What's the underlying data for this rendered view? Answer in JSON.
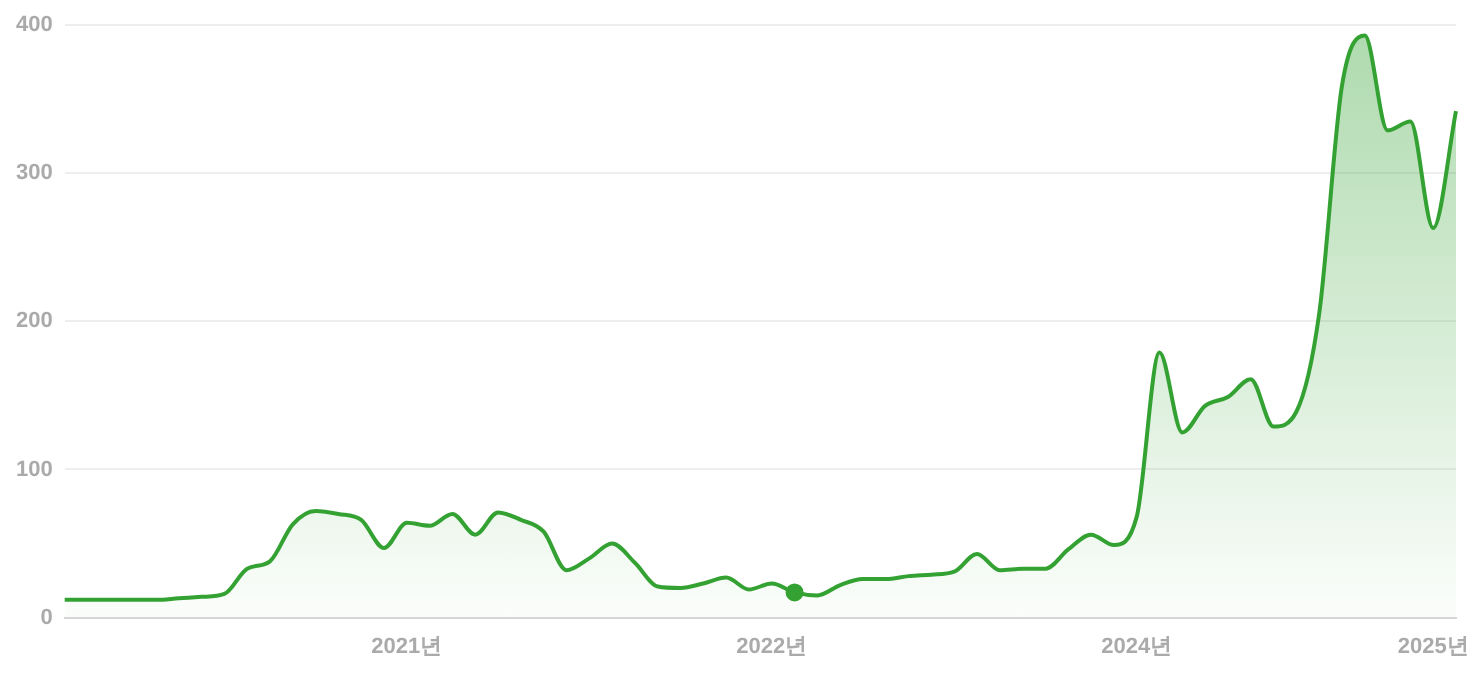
{
  "chart_data": {
    "type": "area",
    "categories": [
      null,
      null,
      null,
      null,
      null,
      null,
      null,
      null,
      null,
      null,
      null,
      null,
      null,
      null,
      null,
      "2021년",
      null,
      null,
      null,
      null,
      null,
      null,
      null,
      null,
      null,
      null,
      null,
      null,
      null,
      null,
      null,
      "2022년",
      null,
      null,
      null,
      null,
      null,
      null,
      null,
      null,
      null,
      null,
      null,
      null,
      null,
      null,
      null,
      "2024년",
      null,
      null,
      null,
      null,
      null,
      null,
      null,
      null,
      null,
      null,
      null,
      null,
      "2025년",
      null
    ],
    "series": [
      {
        "color": "#34a233",
        "values": [
          12,
          12,
          12,
          12,
          12,
          13,
          14,
          16,
          33,
          38,
          63,
          72,
          70,
          66,
          47,
          64,
          62,
          70,
          56,
          71,
          66,
          58,
          32,
          40,
          50,
          37,
          21,
          20,
          23,
          27,
          19,
          23,
          17,
          15,
          22,
          26,
          26,
          28,
          29,
          31,
          43,
          32,
          33,
          33,
          46,
          56,
          49,
          68,
          179,
          125,
          143,
          149,
          161,
          129,
          139,
          205,
          359,
          393,
          329,
          335,
          263,
          342
        ]
      },
      {
        "type": "scatter",
        "marker": "circle",
        "color": "#34a233",
        "values": [
          null,
          null,
          null,
          null,
          null,
          null,
          null,
          null,
          null,
          null,
          null,
          null,
          null,
          null,
          null,
          null,
          null,
          null,
          null,
          null,
          null,
          null,
          null,
          null,
          null,
          null,
          null,
          null,
          null,
          null,
          null,
          null,
          17,
          null,
          null,
          null,
          null,
          null,
          null,
          null,
          null,
          null,
          null,
          null,
          null,
          null,
          null,
          null,
          null,
          null,
          null,
          null,
          null,
          null,
          null,
          null,
          null,
          null,
          null,
          null,
          null,
          null
        ]
      }
    ],
    "ylim": [
      0,
      400
    ],
    "yticks": [
      0,
      100,
      200,
      300,
      400
    ],
    "grid": "y",
    "legend": false
  }
}
